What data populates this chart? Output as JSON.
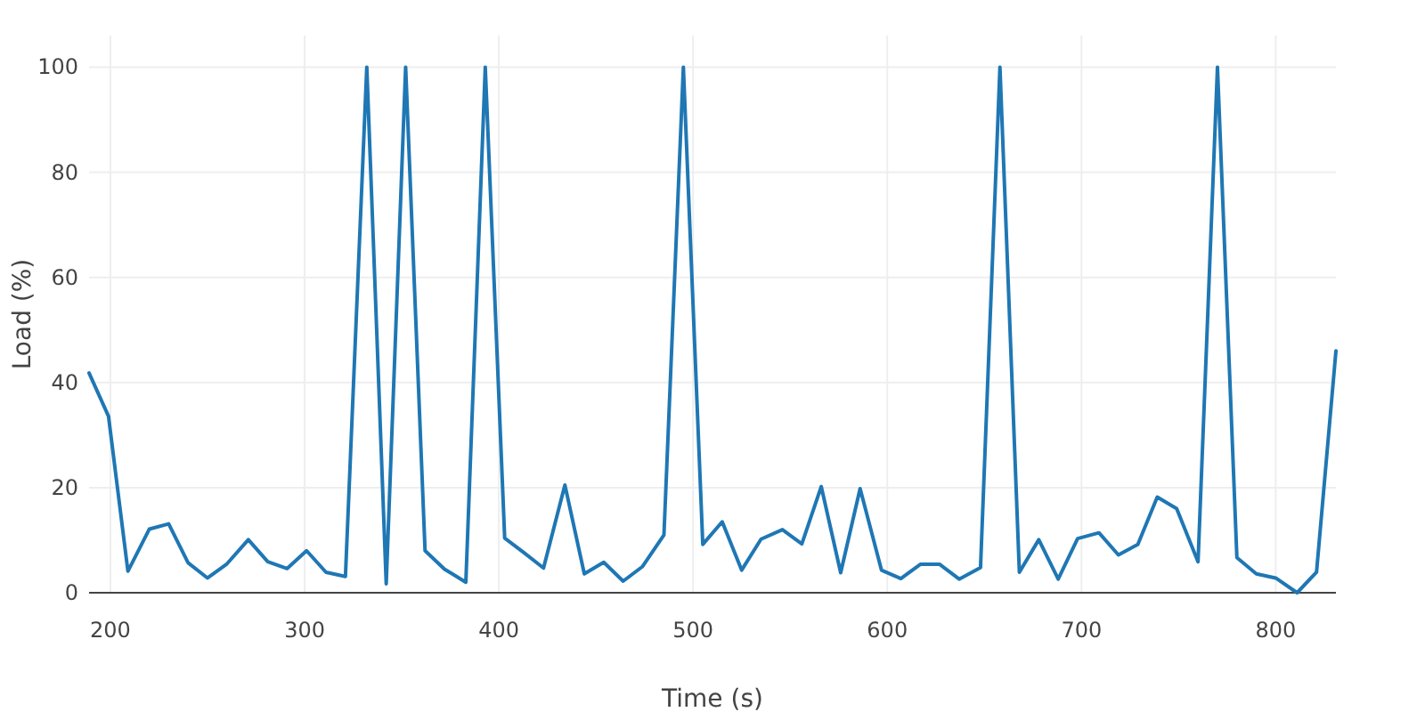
{
  "chart_data": {
    "type": "line",
    "xlabel": "Time (s)",
    "ylabel": "Load (%)",
    "x": [
      189,
      199,
      209,
      220,
      230,
      240,
      250,
      260,
      271,
      281,
      291,
      301,
      311,
      321,
      332,
      342,
      352,
      362,
      372,
      383,
      393,
      403,
      413,
      423,
      434,
      444,
      454,
      464,
      474,
      485,
      495,
      505,
      515,
      525,
      535,
      546,
      556,
      566,
      576,
      586,
      597,
      607,
      617,
      627,
      637,
      648,
      658,
      668,
      678,
      688,
      698,
      709,
      719,
      729,
      739,
      749,
      760,
      770,
      780,
      790,
      800,
      811,
      821,
      831
    ],
    "series": [
      {
        "color": "#1f77b4",
        "values": [
          41.8,
          33.6,
          4.1,
          12.1,
          13.1,
          5.7,
          2.8,
          5.5,
          10.1,
          5.9,
          4.6,
          8.0,
          3.9,
          3.1,
          100,
          1.7,
          100,
          8,
          4.5,
          2.0,
          100,
          10.4,
          7.6,
          4.7,
          20.5,
          3.6,
          5.8,
          2.2,
          5.0,
          11.0,
          100,
          9.2,
          13.5,
          4.3,
          10.2,
          12.0,
          9.3,
          20.2,
          3.8,
          19.8,
          4.3,
          2.7,
          5.4,
          5.4,
          2.6,
          4.8,
          100,
          3.9,
          10.1,
          2.6,
          10.3,
          11.4,
          7.2,
          9.2,
          18.2,
          16.0,
          5.9,
          100,
          6.7,
          3.6,
          2.8,
          0,
          3.9,
          46.0
        ]
      }
    ],
    "xlim": [
      189,
      831
    ],
    "xticks": [
      200,
      300,
      400,
      500,
      600,
      700,
      800
    ],
    "ylim": [
      0,
      106
    ],
    "yticks": [
      0,
      20,
      40,
      60,
      80,
      100
    ],
    "grid": true,
    "marker": "none",
    "line_style": "solid"
  }
}
